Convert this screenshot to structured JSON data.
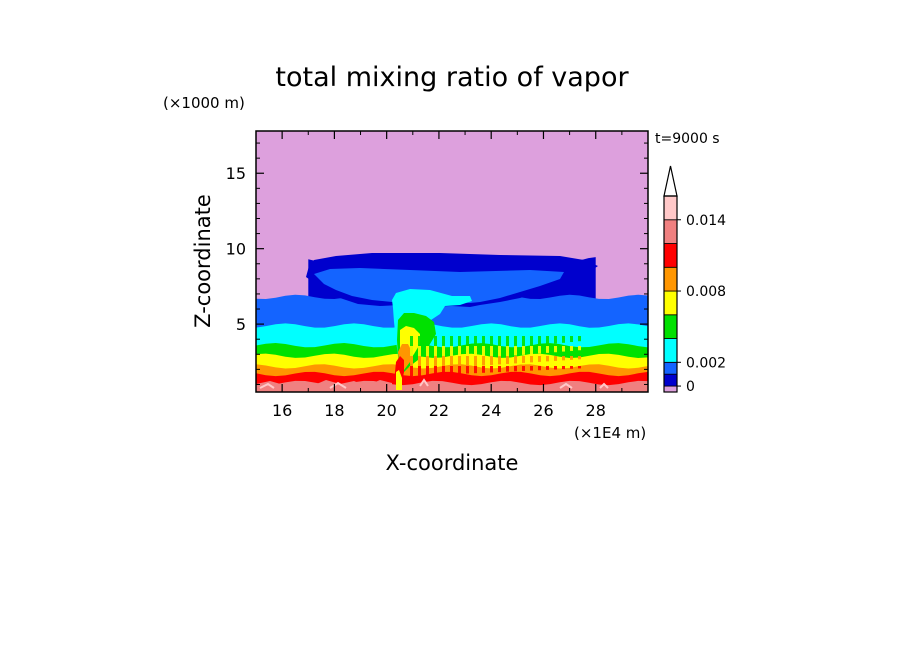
{
  "chart_data": {
    "type": "heatmap",
    "title": "total mixing ratio of vapor",
    "xlabel": "X-coordinate",
    "ylabel": "Z-coordinate",
    "x_unit": "(×1E4 m)",
    "y_unit": "(×1000 m)",
    "time_label": "t=9000 s",
    "xlim": [
      15,
      30
    ],
    "ylim": [
      0.5,
      17.8
    ],
    "x_ticks": [
      16,
      18,
      20,
      22,
      24,
      26,
      28
    ],
    "y_ticks": [
      5,
      10,
      15
    ],
    "grid": false,
    "legend": "right",
    "colorbar": {
      "boundaries": [
        0,
        0.002,
        0.004,
        0.006,
        0.008,
        0.01,
        0.012,
        0.014,
        0.016
      ],
      "labeled_ticks": [
        0,
        0.002,
        0.008,
        0.014
      ],
      "tick_labels": [
        "0",
        "0.002",
        "0.008",
        "0.014"
      ],
      "levels": [
        {
          "range": [
            -0.0005,
            0.0
          ],
          "color": "#dda0dd"
        },
        {
          "range": [
            0.0,
            0.001
          ],
          "color": "#0000cd"
        },
        {
          "range": [
            0.001,
            0.002
          ],
          "color": "#1464ff"
        },
        {
          "range": [
            0.002,
            0.004
          ],
          "color": "#00ffff"
        },
        {
          "range": [
            0.004,
            0.006
          ],
          "color": "#00e100"
        },
        {
          "range": [
            0.006,
            0.008
          ],
          "color": "#ffff00"
        },
        {
          "range": [
            0.008,
            0.01
          ],
          "color": "#ff9600"
        },
        {
          "range": [
            0.01,
            0.012
          ],
          "color": "#ff0000"
        },
        {
          "range": [
            0.012,
            0.014
          ],
          "color": "#f08080"
        },
        {
          "range": [
            0.014,
            0.016
          ],
          "color": "#ffc8c8"
        }
      ],
      "extend": "max"
    },
    "bands": [
      {
        "level": "0-0.001",
        "color": "#0000cd",
        "z_range": [
          6.1,
          9.3
        ],
        "x_range": [
          17.0,
          28.0
        ]
      },
      {
        "level": "0.001-0.002",
        "color": "#1464ff",
        "z_range": [
          4.9,
          6.8
        ],
        "x_range": [
          15.0,
          30.0
        ]
      },
      {
        "level": "0.002-0.004",
        "color": "#00ffff",
        "z_range": [
          3.6,
          4.9
        ],
        "x_range": [
          15.0,
          30.0
        ]
      },
      {
        "level": "0.004-0.006",
        "color": "#00e100",
        "z_range": [
          2.9,
          3.6
        ],
        "x_range": [
          15.0,
          30.0
        ]
      },
      {
        "level": "0.006-0.008",
        "color": "#ffff00",
        "z_range": [
          2.2,
          2.9
        ],
        "x_range": [
          15.0,
          30.0
        ]
      },
      {
        "level": "0.008-0.010",
        "color": "#ff9600",
        "z_range": [
          1.7,
          2.2
        ],
        "x_range": [
          15.0,
          30.0
        ]
      },
      {
        "level": "0.010-0.012",
        "color": "#ff0000",
        "z_range": [
          1.1,
          1.7
        ],
        "x_range": [
          15.0,
          30.0
        ]
      },
      {
        "level": "0.012-0.014",
        "color": "#f08080",
        "z_range": [
          0.5,
          1.1
        ],
        "x_range": [
          15.0,
          30.0
        ]
      }
    ]
  }
}
